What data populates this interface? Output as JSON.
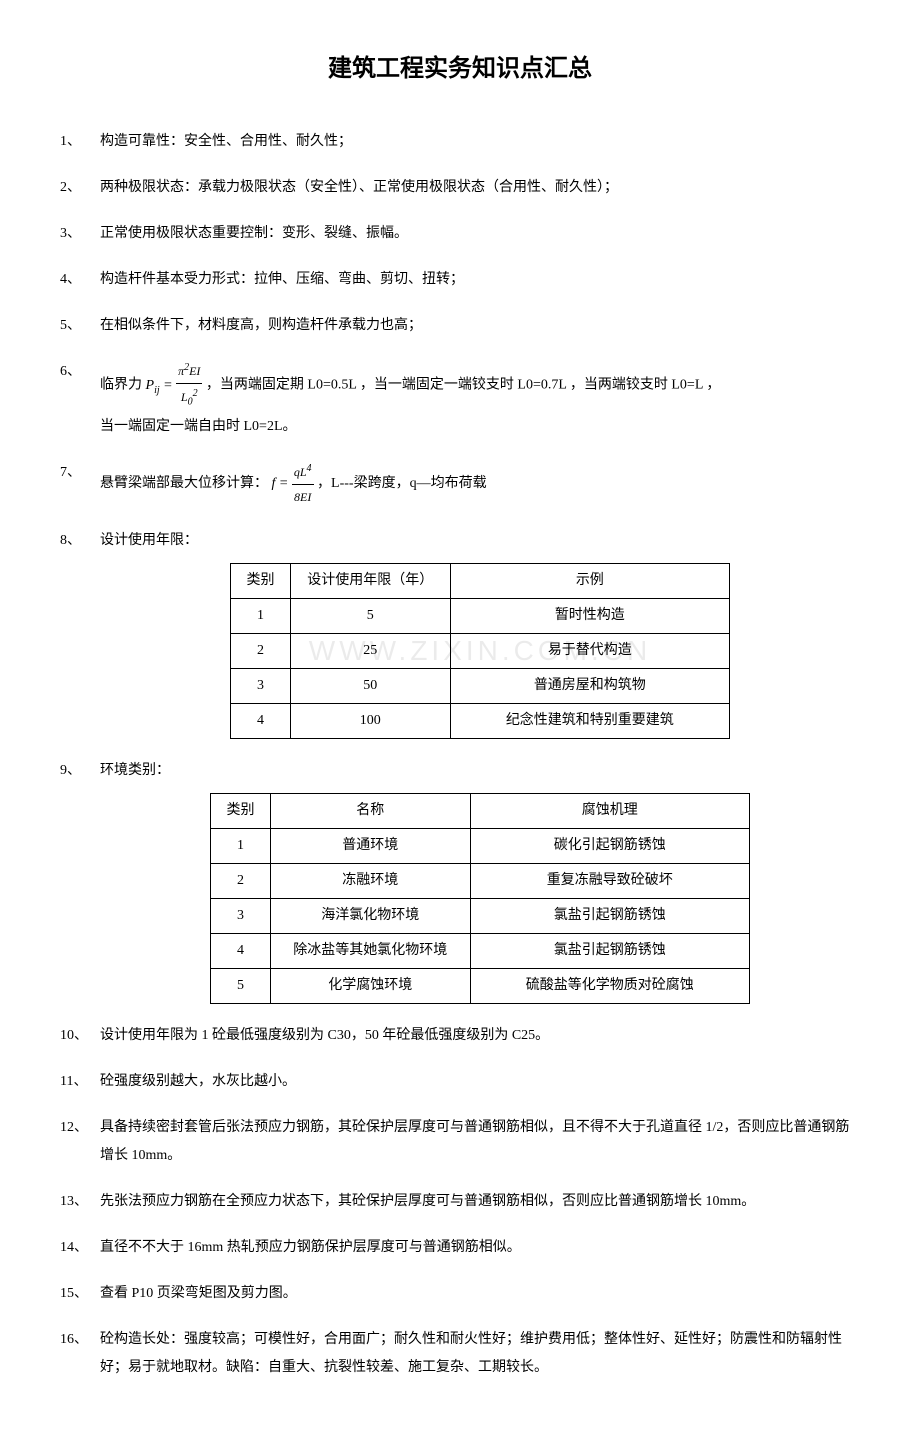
{
  "title": "建筑工程实务知识点汇总",
  "items": [
    {
      "num": "1、",
      "text": "构造可靠性：安全性、合用性、耐久性；"
    },
    {
      "num": "2、",
      "text": "两种极限状态：承载力极限状态（安全性）、正常使用极限状态（合用性、耐久性）；"
    },
    {
      "num": "3、",
      "text": "正常使用极限状态重要控制：变形、裂缝、振幅。"
    },
    {
      "num": "4、",
      "text": "构造杆件基本受力形式：拉伸、压缩、弯曲、剪切、扭转；"
    },
    {
      "num": "5、",
      "text": "在相似条件下，材料度高，则构造杆件承载力也高；"
    },
    {
      "num": "6、",
      "prefix": "临界力",
      "formula_a": "P_ij = π²EI / L₀²",
      "mid": "，当两端固定期 L0=0.5L ，当一端固定一端铰支时 L0=0.7L ，当两端铰支时 L0=L ，",
      "line2": "当一端固定一端自由时 L0=2L。"
    },
    {
      "num": "7、",
      "prefix": "悬臂梁端部最大位移计算：",
      "formula_b": "f = qL⁴ / 8EI",
      "suffix": " ，L---梁跨度，q—均布荷载"
    },
    {
      "num": "8、",
      "text": "设计使用年限："
    },
    {
      "num": "9、",
      "text": "环境类别："
    },
    {
      "num": "10、",
      "text": "设计使用年限为 1 砼最低强度级别为 C30，50 年砼最低强度级别为 C25。"
    },
    {
      "num": "11、",
      "text": "砼强度级别越大，水灰比越小。"
    },
    {
      "num": "12、",
      "text": "具备持续密封套管后张法预应力钢筋，其砼保护层厚度可与普通钢筋相似，且不得不大于孔道直径 1/2，否则应比普通钢筋增长 10mm。"
    },
    {
      "num": "13、",
      "text": "先张法预应力钢筋在全预应力状态下，其砼保护层厚度可与普通钢筋相似，否则应比普通钢筋增长 10mm。"
    },
    {
      "num": "14、",
      "text": "直径不不大于 16mm 热轧预应力钢筋保护层厚度可与普通钢筋相似。"
    },
    {
      "num": "15、",
      "text": "查看 P10 页梁弯矩图及剪力图。"
    },
    {
      "num": "16、",
      "text": "砼构造长处：强度较高；可模性好，合用面广；耐久性和耐火性好；维护费用低；整体性好、延性好；防震性和防辐射性好；易于就地取材。缺陷：自重大、抗裂性较差、施工复杂、工期较长。"
    }
  ],
  "table1": {
    "headers": [
      "类别",
      "设计使用年限（年）",
      "示例"
    ],
    "rows": [
      [
        "1",
        "5",
        "暂时性构造"
      ],
      [
        "2",
        "25",
        "易于替代构造"
      ],
      [
        "3",
        "50",
        "普通房屋和构筑物"
      ],
      [
        "4",
        "100",
        "纪念性建筑和特别重要建筑"
      ]
    ]
  },
  "table2": {
    "headers": [
      "类别",
      "名称",
      "腐蚀机理"
    ],
    "rows": [
      [
        "1",
        "普通环境",
        "碳化引起钢筋锈蚀"
      ],
      [
        "2",
        "冻融环境",
        "重复冻融导致砼破坏"
      ],
      [
        "3",
        "海洋氯化物环境",
        "氯盐引起钢筋锈蚀"
      ],
      [
        "4",
        "除冰盐等其她氯化物环境",
        "氯盐引起钢筋锈蚀"
      ],
      [
        "5",
        "化学腐蚀环境",
        "硫酸盐等化学物质对砼腐蚀"
      ]
    ]
  },
  "watermark": "WWW.ZIXIN.COM.CN",
  "colors": {
    "text": "#000000",
    "background": "#ffffff",
    "border": "#000000",
    "watermark": "rgba(0,0,0,0.08)"
  },
  "typography": {
    "body_fontsize": 14,
    "title_fontsize": 24,
    "title_fontweight": "bold"
  }
}
